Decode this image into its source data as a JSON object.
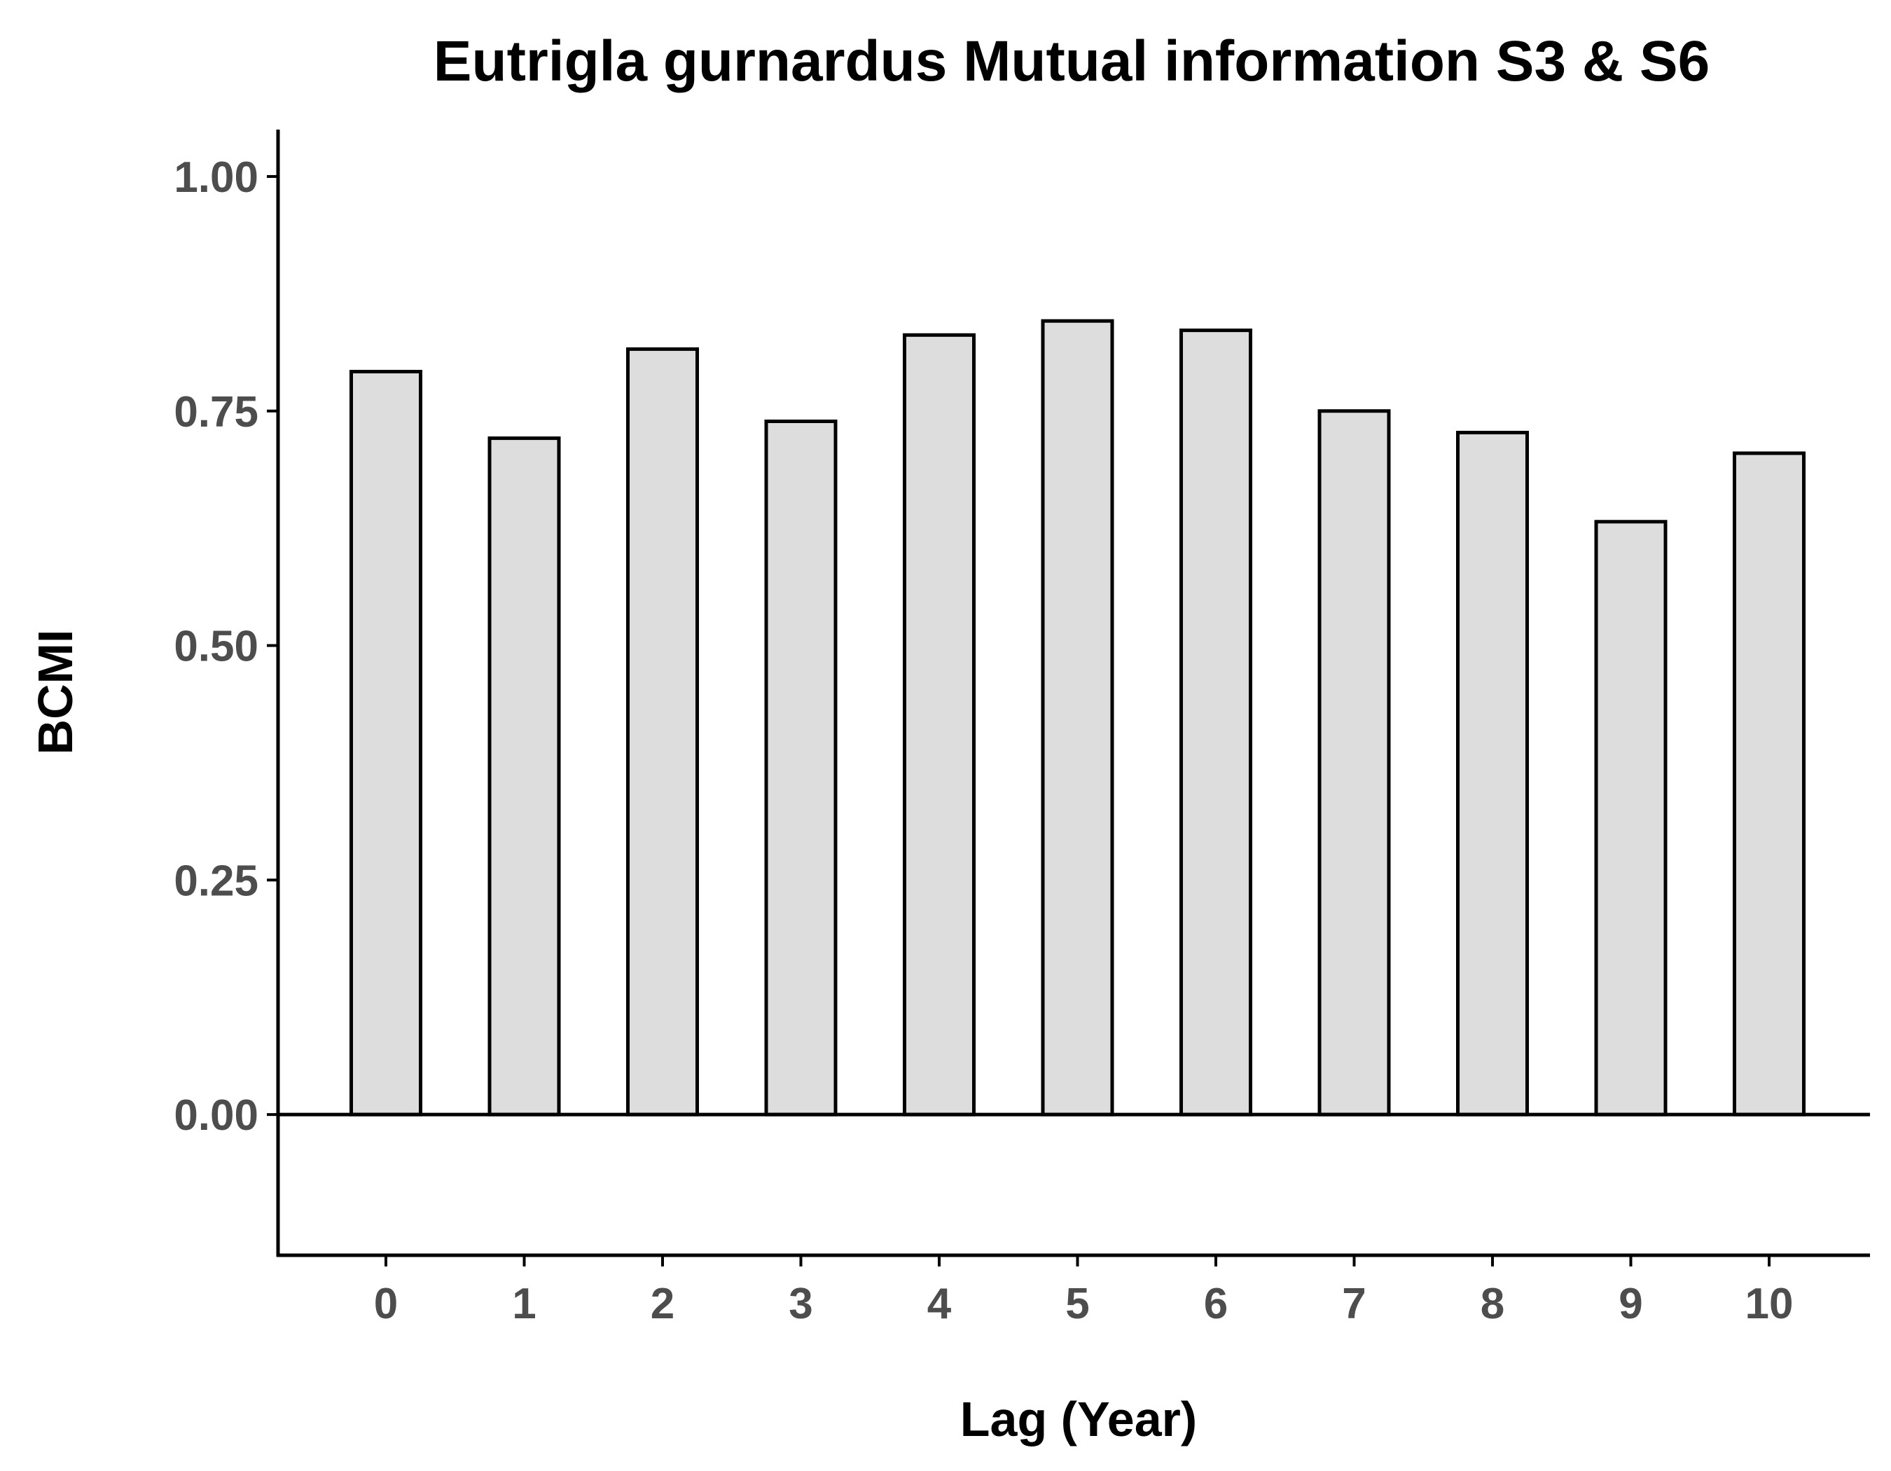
{
  "chart_data": {
    "type": "bar",
    "title": "Eutrigla gurnardus Mutual information S3 & S6",
    "xlabel": "Lag (Year)",
    "ylabel": "BCMI",
    "categories": [
      "0",
      "1",
      "2",
      "3",
      "4",
      "5",
      "6",
      "7",
      "8",
      "9",
      "10"
    ],
    "values": [
      0.792,
      0.721,
      0.816,
      0.739,
      0.831,
      0.846,
      0.836,
      0.75,
      0.727,
      0.632,
      0.705
    ],
    "ylim": [
      -0.15,
      1.05
    ],
    "yticks": [
      0.0,
      0.25,
      0.5,
      0.75,
      1.0
    ],
    "ytick_labels": [
      "0.00",
      "0.25",
      "0.50",
      "0.75",
      "1.00"
    ],
    "grid": false,
    "legend": "none",
    "reference_line_y": 0,
    "colors": {
      "bar_fill": "#dddddd",
      "bar_stroke": "#000000",
      "axis": "#000000",
      "tick_label": "#4d4d4d"
    }
  }
}
